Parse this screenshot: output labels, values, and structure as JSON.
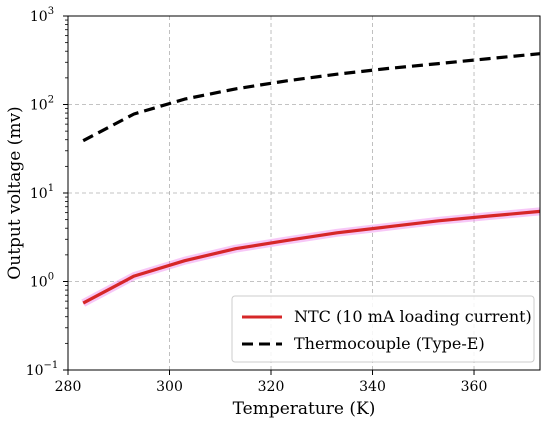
{
  "chart_data": {
    "type": "line",
    "title": "",
    "xlabel": "Temperature (K)",
    "ylabel": "Output voltage (mv)",
    "xlim": [
      280,
      373
    ],
    "ylim": [
      0.1,
      1000
    ],
    "yscale": "log",
    "grid": true,
    "legend_position": "bottom-right",
    "x_ticks": [
      280,
      300,
      320,
      340,
      360
    ],
    "y_ticks": [
      {
        "value": 0.1,
        "base": "10",
        "exp": "−1"
      },
      {
        "value": 1,
        "base": "10",
        "exp": "0"
      },
      {
        "value": 10,
        "base": "10",
        "exp": "1"
      },
      {
        "value": 100,
        "base": "10",
        "exp": "2"
      },
      {
        "value": 1000,
        "base": "10",
        "exp": "3"
      }
    ],
    "series": [
      {
        "name": "NTC (10 mA loading current)",
        "color": "#d62728",
        "glow_color": "#ee82ee",
        "style": "solid",
        "x": [
          283,
          293,
          303,
          313,
          323,
          333,
          343,
          353,
          363,
          373
        ],
        "y": [
          0.57,
          1.15,
          1.72,
          2.35,
          2.9,
          3.55,
          4.15,
          4.85,
          5.5,
          6.2
        ]
      },
      {
        "name": "Thermocouple (Type-E)",
        "color": "#000000",
        "style": "dashed",
        "x": [
          283,
          293,
          303,
          313,
          323,
          333,
          343,
          353,
          363,
          373
        ],
        "y": [
          39,
          78,
          115,
          150,
          185,
          220,
          255,
          290,
          330,
          375
        ]
      }
    ]
  }
}
